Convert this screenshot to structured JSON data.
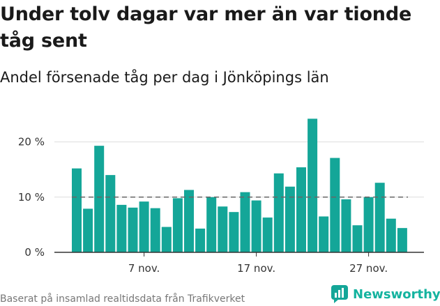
{
  "header": {
    "title": "Under tolv dagar var mer än var tionde tåg sent",
    "subtitle": "Andel försenade tåg per dag i Jönköpings län"
  },
  "footer": {
    "source": "Baserat på insamlad realtidsdata från Trafikverket",
    "brand": "Newsworthy"
  },
  "colors": {
    "bar": "#14a698",
    "grid": "#dddddd",
    "axis": "#333333",
    "threshold": "#666666"
  },
  "chart_data": {
    "type": "bar",
    "title": "Under tolv dagar var mer än var tionde tåg sent",
    "subtitle": "Andel försenade tåg per dag i Jönköpings län",
    "xlabel": "",
    "ylabel": "",
    "ylim": [
      0,
      25
    ],
    "yticks": [
      0,
      10,
      20
    ],
    "ytick_labels": [
      "0 %",
      "10 %",
      "20 %"
    ],
    "xtick_positions": [
      6,
      16,
      26
    ],
    "xtick_labels": [
      "7 nov.",
      "17 nov.",
      "27 nov."
    ],
    "threshold": 10,
    "grid": true,
    "values": [
      15.2,
      7.9,
      19.3,
      14.0,
      8.6,
      8.1,
      9.2,
      8.0,
      4.6,
      9.8,
      11.3,
      4.3,
      10.0,
      8.3,
      7.3,
      10.9,
      9.4,
      6.3,
      14.3,
      11.9,
      15.4,
      24.2,
      6.5,
      17.1,
      9.6,
      4.9,
      10.0,
      12.6,
      6.1,
      4.4
    ]
  }
}
